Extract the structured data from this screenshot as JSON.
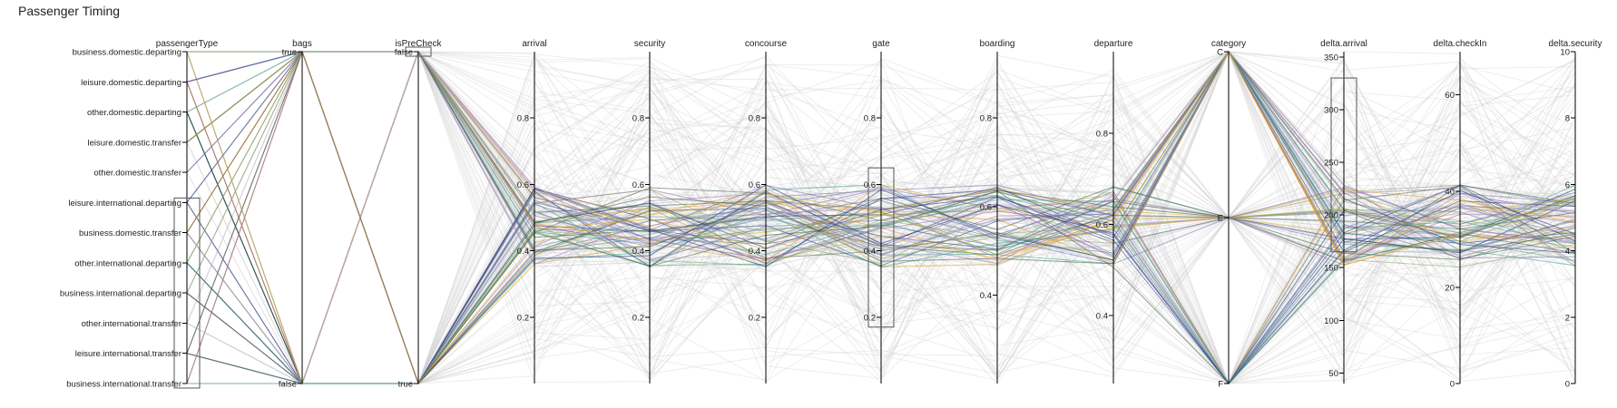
{
  "title": "Passenger Timing",
  "chart_data": {
    "type": "parallel-coordinates",
    "title": "Passenger Timing",
    "colors": {
      "background_lines": "#cfcfcf",
      "highlight": [
        "#1f2f7a",
        "#3a5f3a",
        "#6b6ba8",
        "#e0a020",
        "#3a9a8a",
        "#9a6ab0",
        "#8aa060",
        "#c0c0d8"
      ]
    },
    "axes": [
      {
        "name": "passengerType",
        "kind": "categorical",
        "ticks": [
          "business.domestic.departing",
          "leisure.domestic.departing",
          "other.domestic.departing",
          "leisure.domestic.transfer",
          "other.domestic.transfer",
          "leisure.international.departing",
          "business.domestic.transfer",
          "other.international.departing",
          "business.international.departing",
          "other.international.transfer",
          "leisure.international.transfer",
          "business.international.transfer"
        ],
        "brush": [
          "leisure.international.departing",
          "business.international.transfer"
        ]
      },
      {
        "name": "bags",
        "kind": "categorical",
        "ticks": [
          "true",
          "false"
        ]
      },
      {
        "name": "isPreCheck",
        "kind": "categorical",
        "ticks": [
          "false",
          "true"
        ],
        "brush": [
          "false",
          "false"
        ]
      },
      {
        "name": "arrival",
        "kind": "numeric",
        "range": [
          0,
          1
        ],
        "ticks": [
          0.2,
          0.4,
          0.6,
          0.8
        ]
      },
      {
        "name": "security",
        "kind": "numeric",
        "range": [
          0,
          1
        ],
        "ticks": [
          0.2,
          0.4,
          0.6,
          0.8
        ]
      },
      {
        "name": "concourse",
        "kind": "numeric",
        "range": [
          0,
          1
        ],
        "ticks": [
          0.2,
          0.4,
          0.6,
          0.8
        ]
      },
      {
        "name": "gate",
        "kind": "numeric",
        "range": [
          0,
          1
        ],
        "ticks": [
          0.2,
          0.4,
          0.6,
          0.8
        ],
        "brush": [
          0.17,
          0.65
        ]
      },
      {
        "name": "boarding",
        "kind": "numeric",
        "range": [
          0.2,
          0.95
        ],
        "ticks": [
          0.4,
          0.6,
          0.8
        ]
      },
      {
        "name": "departure",
        "kind": "numeric",
        "range": [
          0.25,
          0.98
        ],
        "ticks": [
          0.4,
          0.6,
          0.8
        ]
      },
      {
        "name": "category",
        "kind": "categorical",
        "ticks": [
          "C",
          "E",
          "F"
        ]
      },
      {
        "name": "delta.arrival",
        "kind": "numeric",
        "range": [
          40,
          355
        ],
        "ticks": [
          50,
          100,
          150,
          200,
          250,
          300,
          350
        ],
        "brush": [
          165,
          330
        ]
      },
      {
        "name": "delta.checkIn",
        "kind": "numeric",
        "range": [
          0,
          69
        ],
        "ticks": [
          0,
          20,
          40,
          60
        ]
      },
      {
        "name": "delta.security",
        "kind": "numeric",
        "range": [
          0,
          10
        ],
        "ticks": [
          0,
          2,
          4,
          6,
          8,
          10
        ]
      }
    ]
  }
}
